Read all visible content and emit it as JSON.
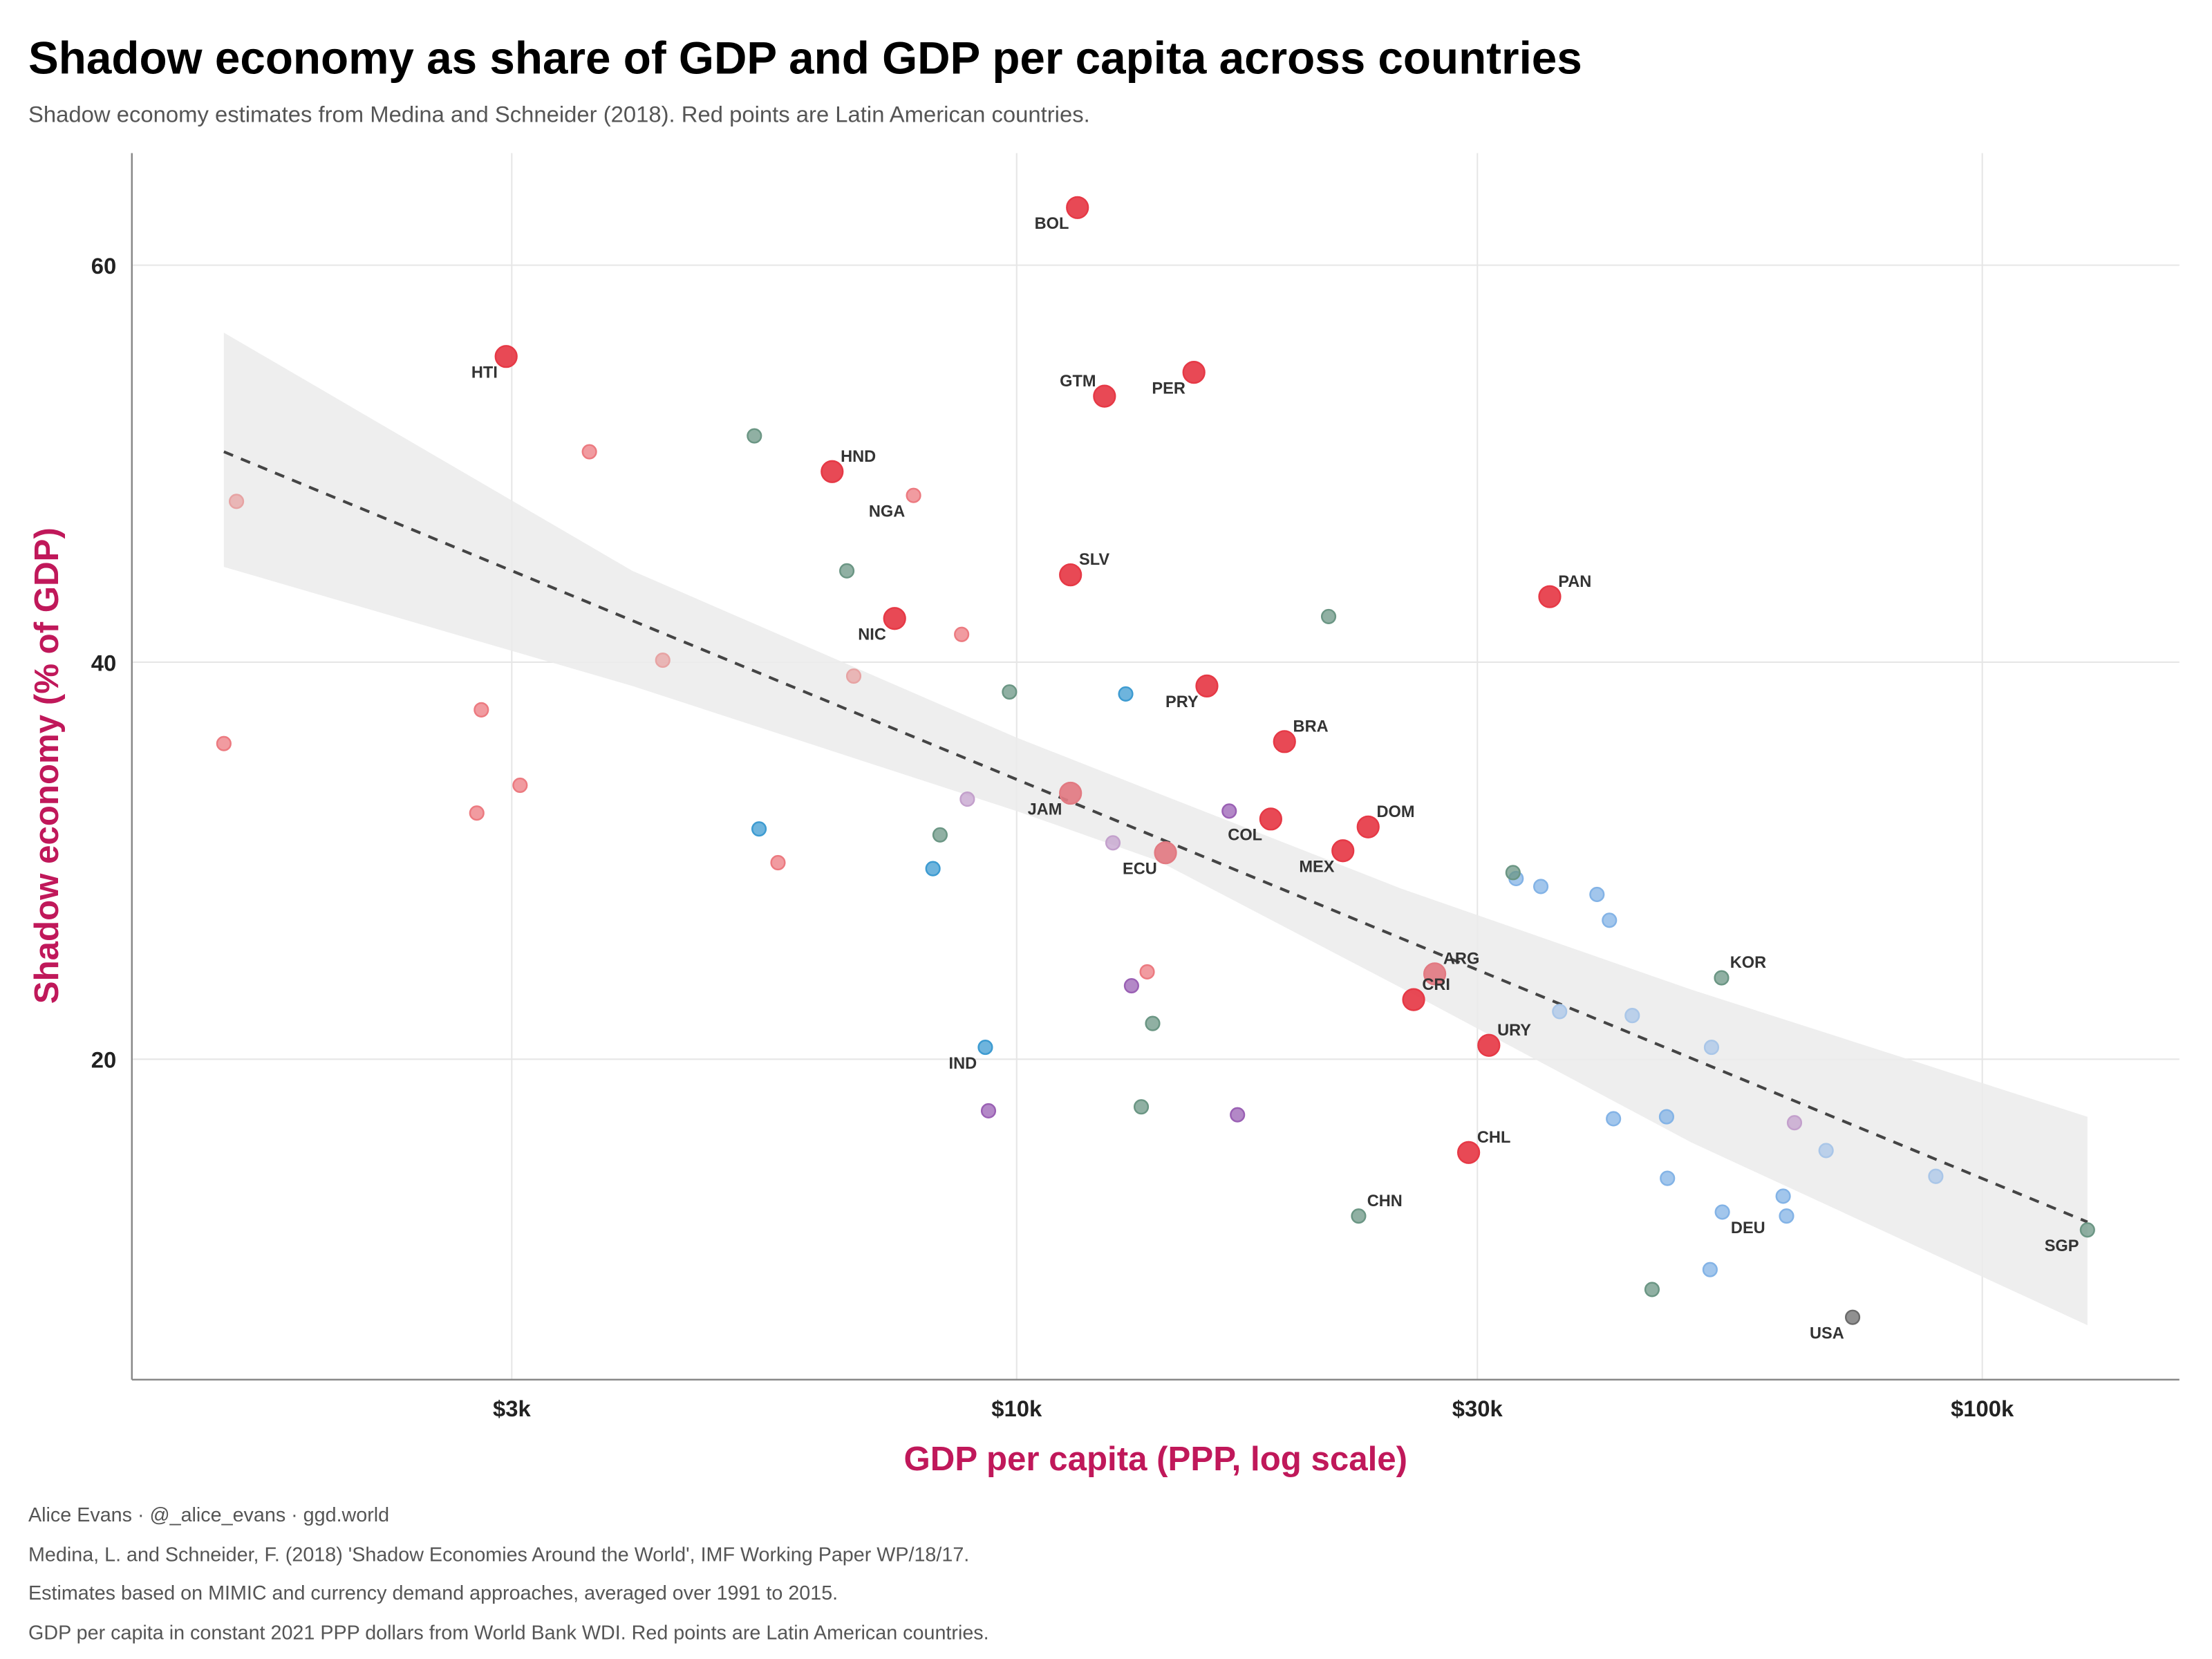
{
  "title": "Shadow economy as share of GDP and GDP per capita across countries",
  "subtitle": "Shadow economy estimates from Medina and Schneider (2018). Red points are Latin American countries.",
  "footer": [
    "Alice Evans · @_alice_evans · ggd.world",
    "Medina, L. and Schneider, F. (2018) 'Shadow Economies Around the World', IMF Working Paper WP/18/17.",
    "Estimates based on MIMIC and currency demand approaches, averaged over 1991 to 2015.",
    "GDP per capita in constant 2021 PPP dollars from World Bank WDI. Red points are Latin American countries."
  ],
  "colors": {
    "latam": "#e63946",
    "latam_light": "#e27a82",
    "africa": "#ec7a80",
    "africa_light": "#e7a3a3",
    "asia": "#6b9684",
    "south_asia": "#3d9bd1",
    "europe": "#83b3e6",
    "europe_light": "#a9c6e8",
    "mena": "#9a60b4",
    "mena_light": "#c3a0cc",
    "usa": "#6b6b6b",
    "ribbon": "#ebebeb",
    "trend": "#444444"
  },
  "chart_data": {
    "type": "scatter",
    "title": "Shadow economy as share of GDP and GDP per capita across countries",
    "xlabel": "GDP per capita (PPP, log scale)",
    "ylabel": "Shadow economy (% of GDP)",
    "xscale": "log",
    "xlim": [
      1100,
      155000
    ],
    "ylim": [
      3.8,
      65.7
    ],
    "xticks": [
      {
        "value": 3000,
        "label": "$3k"
      },
      {
        "value": 10000,
        "label": "$10k"
      },
      {
        "value": 30000,
        "label": "$30k"
      },
      {
        "value": 100000,
        "label": "$100k"
      }
    ],
    "yticks": [
      {
        "value": 20,
        "label": "20"
      },
      {
        "value": 40,
        "label": "40"
      },
      {
        "value": 60,
        "label": "60"
      }
    ],
    "grid": true,
    "trend": {
      "style": "dashed",
      "x": [
        1510,
        128500
      ],
      "y": [
        50.6,
        11.8
      ]
    },
    "confidence_band": [
      {
        "x": 1510,
        "lo": 44.8,
        "hi": 56.6
      },
      {
        "x": 4000,
        "lo": 38.8,
        "hi": 44.6
      },
      {
        "x": 10000,
        "lo": 32.5,
        "hi": 36.2
      },
      {
        "x": 14000,
        "lo": 30.0,
        "hi": 33.4
      },
      {
        "x": 25000,
        "lo": 23.6,
        "hi": 28.6
      },
      {
        "x": 50000,
        "lo": 15.8,
        "hi": 23.5
      },
      {
        "x": 128500,
        "lo": 6.6,
        "hi": 17.1
      }
    ],
    "points": [
      {
        "label": "BOL",
        "gdp": 11560,
        "share": 62.9,
        "group": "latam",
        "pos": "bl"
      },
      {
        "label": "HTI",
        "gdp": 2960,
        "share": 55.4,
        "group": "latam",
        "pos": "bl"
      },
      {
        "label": "GTM",
        "gdp": 12330,
        "share": 53.4,
        "group": "latam",
        "pos": "al"
      },
      {
        "label": "PER",
        "gdp": 15260,
        "share": 54.6,
        "group": "latam",
        "pos": "bl"
      },
      {
        "label": "HND",
        "gdp": 6440,
        "share": 49.6,
        "group": "latam",
        "pos": "ar"
      },
      {
        "label": "SLV",
        "gdp": 11370,
        "share": 44.4,
        "group": "latam",
        "pos": "ar"
      },
      {
        "label": "NIC",
        "gdp": 7475,
        "share": 42.2,
        "group": "latam",
        "pos": "bl"
      },
      {
        "label": "PAN",
        "gdp": 35650,
        "share": 43.3,
        "group": "latam",
        "pos": "ar"
      },
      {
        "label": "PRY",
        "gdp": 15740,
        "share": 38.8,
        "group": "latam",
        "pos": "bl"
      },
      {
        "label": "BRA",
        "gdp": 18940,
        "share": 36.0,
        "group": "latam",
        "pos": "ar"
      },
      {
        "label": "JAM",
        "gdp": 11370,
        "share": 33.4,
        "group": "latam_light",
        "pos": "bl"
      },
      {
        "label": "COL",
        "gdp": 18330,
        "share": 32.1,
        "group": "latam",
        "pos": "bl"
      },
      {
        "label": "DOM",
        "gdp": 23120,
        "share": 31.7,
        "group": "latam",
        "pos": "ar"
      },
      {
        "label": "MEX",
        "gdp": 21770,
        "share": 30.5,
        "group": "latam",
        "pos": "bl"
      },
      {
        "label": "ECU",
        "gdp": 14260,
        "share": 30.4,
        "group": "latam_light",
        "pos": "bl"
      },
      {
        "label": "ARG",
        "gdp": 27100,
        "share": 24.3,
        "group": "latam_light",
        "pos": "ar"
      },
      {
        "label": "CRI",
        "gdp": 25770,
        "share": 23.0,
        "group": "latam",
        "pos": "ar"
      },
      {
        "label": "URY",
        "gdp": 30830,
        "share": 20.7,
        "group": "latam",
        "pos": "ar"
      },
      {
        "label": "CHL",
        "gdp": 29380,
        "share": 15.3,
        "group": "latam",
        "pos": "ar"
      },
      {
        "label": "NGA",
        "gdp": 7820,
        "share": 48.4,
        "group": "africa",
        "pos": "bl"
      },
      {
        "label": "",
        "gdp": 1556,
        "share": 48.1,
        "group": "africa_light"
      },
      {
        "label": "",
        "gdp": 3610,
        "share": 50.6,
        "group": "africa"
      },
      {
        "label": "",
        "gdp": 4300,
        "share": 40.1,
        "group": "africa_light"
      },
      {
        "label": "",
        "gdp": 8770,
        "share": 41.4,
        "group": "africa"
      },
      {
        "label": "",
        "gdp": 6780,
        "share": 39.3,
        "group": "africa_light"
      },
      {
        "label": "",
        "gdp": 2790,
        "share": 37.6,
        "group": "africa"
      },
      {
        "label": "",
        "gdp": 1510,
        "share": 35.9,
        "group": "africa"
      },
      {
        "label": "",
        "gdp": 3060,
        "share": 33.8,
        "group": "africa"
      },
      {
        "label": "",
        "gdp": 2760,
        "share": 32.4,
        "group": "africa"
      },
      {
        "label": "",
        "gdp": 5660,
        "share": 29.9,
        "group": "africa"
      },
      {
        "label": "",
        "gdp": 13650,
        "share": 24.4,
        "group": "africa"
      },
      {
        "label": "",
        "gdp": 5350,
        "share": 51.4,
        "group": "asia"
      },
      {
        "label": "",
        "gdp": 6670,
        "share": 44.6,
        "group": "asia"
      },
      {
        "label": "",
        "gdp": 21040,
        "share": 42.3,
        "group": "asia"
      },
      {
        "label": "",
        "gdp": 9830,
        "share": 38.5,
        "group": "asia"
      },
      {
        "label": "",
        "gdp": 8330,
        "share": 31.3,
        "group": "asia"
      },
      {
        "label": "",
        "gdp": 13830,
        "share": 21.8,
        "group": "asia"
      },
      {
        "label": "",
        "gdp": 13460,
        "share": 17.6,
        "group": "asia"
      },
      {
        "label": "CHN",
        "gdp": 22600,
        "share": 12.1,
        "group": "asia",
        "pos": "ar"
      },
      {
        "label": "",
        "gdp": 45500,
        "share": 8.4,
        "group": "asia"
      },
      {
        "label": "KOR",
        "gdp": 53700,
        "share": 24.1,
        "group": "asia",
        "pos": "ar"
      },
      {
        "label": "SGP",
        "gdp": 128500,
        "share": 11.4,
        "group": "asia",
        "pos": "bl"
      },
      {
        "label": "",
        "gdp": 12970,
        "share": 38.4,
        "group": "south_asia"
      },
      {
        "label": "",
        "gdp": 5410,
        "share": 31.6,
        "group": "south_asia"
      },
      {
        "label": "",
        "gdp": 8190,
        "share": 29.6,
        "group": "south_asia"
      },
      {
        "label": "IND",
        "gdp": 9280,
        "share": 20.6,
        "group": "south_asia",
        "pos": "bl"
      },
      {
        "label": "",
        "gdp": 32900,
        "share": 29.1,
        "group": "europe"
      },
      {
        "label": "",
        "gdp": 32660,
        "share": 29.4,
        "group": "asia"
      },
      {
        "label": "",
        "gdp": 34900,
        "share": 28.7,
        "group": "europe"
      },
      {
        "label": "",
        "gdp": 39900,
        "share": 28.3,
        "group": "europe"
      },
      {
        "label": "",
        "gdp": 41100,
        "share": 27.0,
        "group": "europe"
      },
      {
        "label": "",
        "gdp": 36500,
        "share": 22.4,
        "group": "europe_light"
      },
      {
        "label": "",
        "gdp": 43400,
        "share": 22.2,
        "group": "europe_light"
      },
      {
        "label": "",
        "gdp": 52430,
        "share": 20.6,
        "group": "europe_light"
      },
      {
        "label": "",
        "gdp": 41500,
        "share": 17.0,
        "group": "europe"
      },
      {
        "label": "",
        "gdp": 47100,
        "share": 17.1,
        "group": "europe"
      },
      {
        "label": "",
        "gdp": 47200,
        "share": 14.0,
        "group": "europe"
      },
      {
        "label": "DEU",
        "gdp": 53800,
        "share": 12.3,
        "group": "europe",
        "pos": "br"
      },
      {
        "label": "",
        "gdp": 52250,
        "share": 9.4,
        "group": "europe"
      },
      {
        "label": "",
        "gdp": 62200,
        "share": 13.1,
        "group": "europe"
      },
      {
        "label": "",
        "gdp": 62700,
        "share": 12.1,
        "group": "europe"
      },
      {
        "label": "",
        "gdp": 68900,
        "share": 15.4,
        "group": "europe_light"
      },
      {
        "label": "",
        "gdp": 89500,
        "share": 14.1,
        "group": "europe_light"
      },
      {
        "label": "",
        "gdp": 16600,
        "share": 32.5,
        "group": "mena"
      },
      {
        "label": "",
        "gdp": 9350,
        "share": 17.4,
        "group": "mena"
      },
      {
        "label": "",
        "gdp": 16930,
        "share": 17.2,
        "group": "mena"
      },
      {
        "label": "",
        "gdp": 13150,
        "share": 23.7,
        "group": "mena"
      },
      {
        "label": "",
        "gdp": 8890,
        "share": 33.1,
        "group": "mena_light"
      },
      {
        "label": "",
        "gdp": 12580,
        "share": 30.9,
        "group": "mena_light"
      },
      {
        "label": "",
        "gdp": 63900,
        "share": 16.8,
        "group": "mena_light"
      },
      {
        "label": "USA",
        "gdp": 73400,
        "share": 7.0,
        "group": "usa",
        "pos": "bl"
      }
    ]
  }
}
